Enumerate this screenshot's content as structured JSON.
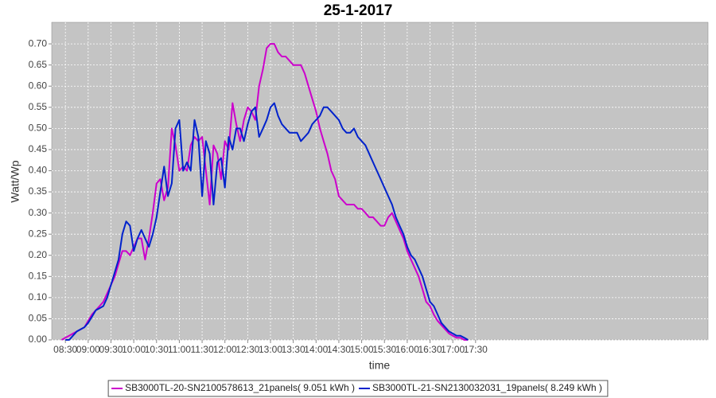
{
  "chart_data": {
    "type": "line",
    "title": "25-1-2017",
    "xlabel": "time",
    "ylabel": "Watt/Wp",
    "x": [
      505,
      510,
      515,
      520,
      525,
      530,
      535,
      540,
      545,
      550,
      555,
      560,
      565,
      570,
      575,
      580,
      585,
      590,
      595,
      600,
      605,
      610,
      615,
      620,
      625,
      630,
      635,
      640,
      645,
      650,
      655,
      660,
      665,
      670,
      675,
      680,
      685,
      690,
      695,
      700,
      705,
      710,
      715,
      720,
      725,
      730,
      735,
      740,
      745,
      750,
      755,
      760,
      765,
      770,
      775,
      780,
      785,
      790,
      795,
      800,
      805,
      810,
      815,
      820,
      825,
      830,
      835,
      840,
      845,
      850,
      855,
      860,
      865,
      870,
      875,
      880,
      885,
      890,
      895,
      900,
      905,
      910,
      915,
      920,
      925,
      930,
      935,
      940,
      945,
      950,
      955,
      960,
      965,
      970,
      975,
      980,
      985,
      990,
      995,
      1000,
      1005,
      1010,
      1015,
      1020,
      1025,
      1030,
      1035,
      1040
    ],
    "series": [
      {
        "name": "SB3000TL-20-SN2100578613_21panels( 9.051 kWh )",
        "color": "#cc00cc",
        "values": [
          0,
          0.005,
          0.01,
          0.015,
          0.02,
          0.025,
          0.03,
          0.045,
          0.06,
          0.07,
          0.08,
          0.09,
          0.11,
          0.13,
          0.15,
          0.18,
          0.21,
          0.21,
          0.2,
          0.22,
          0.24,
          0.24,
          0.19,
          0.24,
          0.3,
          0.37,
          0.38,
          0.33,
          0.36,
          0.5,
          0.46,
          0.4,
          0.41,
          0.4,
          0.46,
          0.48,
          0.47,
          0.48,
          0.4,
          0.32,
          0.46,
          0.44,
          0.38,
          0.47,
          0.45,
          0.56,
          0.51,
          0.47,
          0.52,
          0.55,
          0.54,
          0.52,
          0.6,
          0.64,
          0.69,
          0.7,
          0.7,
          0.68,
          0.67,
          0.67,
          0.66,
          0.65,
          0.65,
          0.65,
          0.63,
          0.6,
          0.57,
          0.54,
          0.5,
          0.47,
          0.44,
          0.4,
          0.38,
          0.34,
          0.33,
          0.32,
          0.32,
          0.32,
          0.31,
          0.31,
          0.3,
          0.29,
          0.29,
          0.28,
          0.27,
          0.27,
          0.29,
          0.3,
          0.28,
          0.26,
          0.24,
          0.21,
          0.19,
          0.17,
          0.15,
          0.12,
          0.09,
          0.08,
          0.06,
          0.045,
          0.035,
          0.025,
          0.015,
          0.01,
          0.005,
          0.005,
          0,
          0
        ]
      },
      {
        "name": "SB3000TL-21-SN2130032031_19panels( 8.249 kWh )",
        "color": "#0022cc",
        "values": [
          null,
          0,
          0,
          0.01,
          0.02,
          0.025,
          0.03,
          0.04,
          0.055,
          0.07,
          0.075,
          0.08,
          0.1,
          0.13,
          0.16,
          0.19,
          0.25,
          0.28,
          0.27,
          0.21,
          0.24,
          0.26,
          0.24,
          0.22,
          0.25,
          0.29,
          0.35,
          0.41,
          0.34,
          0.37,
          0.5,
          0.52,
          0.4,
          0.42,
          0.4,
          0.52,
          0.48,
          0.34,
          0.47,
          0.44,
          0.32,
          0.42,
          0.43,
          0.36,
          0.48,
          0.45,
          0.5,
          0.5,
          0.47,
          0.51,
          0.54,
          0.55,
          0.48,
          0.5,
          0.52,
          0.55,
          0.56,
          0.53,
          0.51,
          0.5,
          0.49,
          0.49,
          0.49,
          0.47,
          0.48,
          0.49,
          0.51,
          0.52,
          0.53,
          0.55,
          0.55,
          0.54,
          0.53,
          0.52,
          0.5,
          0.49,
          0.49,
          0.5,
          0.48,
          0.47,
          0.46,
          0.44,
          0.42,
          0.4,
          0.38,
          0.36,
          0.34,
          0.32,
          0.29,
          0.27,
          0.25,
          0.22,
          0.2,
          0.19,
          0.17,
          0.15,
          0.12,
          0.09,
          0.08,
          0.06,
          0.04,
          0.03,
          0.02,
          0.015,
          0.01,
          0.01,
          0.005,
          0
        ]
      }
    ],
    "xlim": [
      492,
      1356
    ],
    "xticks": [
      {
        "value": 510,
        "label": "08:30"
      },
      {
        "value": 540,
        "label": "09:00"
      },
      {
        "value": 570,
        "label": "09:30"
      },
      {
        "value": 600,
        "label": "10:00"
      },
      {
        "value": 630,
        "label": "10:30"
      },
      {
        "value": 660,
        "label": "11:00"
      },
      {
        "value": 690,
        "label": "11:30"
      },
      {
        "value": 720,
        "label": "12:00"
      },
      {
        "value": 750,
        "label": "12:30"
      },
      {
        "value": 780,
        "label": "13:00"
      },
      {
        "value": 810,
        "label": "13:30"
      },
      {
        "value": 840,
        "label": "14:00"
      },
      {
        "value": 870,
        "label": "14:30"
      },
      {
        "value": 900,
        "label": "15:00"
      },
      {
        "value": 930,
        "label": "15:30"
      },
      {
        "value": 960,
        "label": "16:00"
      },
      {
        "value": 990,
        "label": "16:30"
      },
      {
        "value": 1020,
        "label": "17:00"
      },
      {
        "value": 1050,
        "label": "17:30"
      }
    ],
    "ylim": [
      0,
      0.751
    ],
    "yticks": [
      {
        "value": 0,
        "label": "0.00"
      },
      {
        "value": 0.05,
        "label": "0.05"
      },
      {
        "value": 0.1,
        "label": "0.10"
      },
      {
        "value": 0.15,
        "label": "0.15"
      },
      {
        "value": 0.2,
        "label": "0.20"
      },
      {
        "value": 0.25,
        "label": "0.25"
      },
      {
        "value": 0.3,
        "label": "0.30"
      },
      {
        "value": 0.35,
        "label": "0.35"
      },
      {
        "value": 0.4,
        "label": "0.40"
      },
      {
        "value": 0.45,
        "label": "0.45"
      },
      {
        "value": 0.5,
        "label": "0.50"
      },
      {
        "value": 0.55,
        "label": "0.55"
      },
      {
        "value": 0.6,
        "label": "0.60"
      },
      {
        "value": 0.65,
        "label": "0.65"
      },
      {
        "value": 0.7,
        "label": "0.70"
      }
    ],
    "grid": true,
    "legend": "bottom"
  }
}
